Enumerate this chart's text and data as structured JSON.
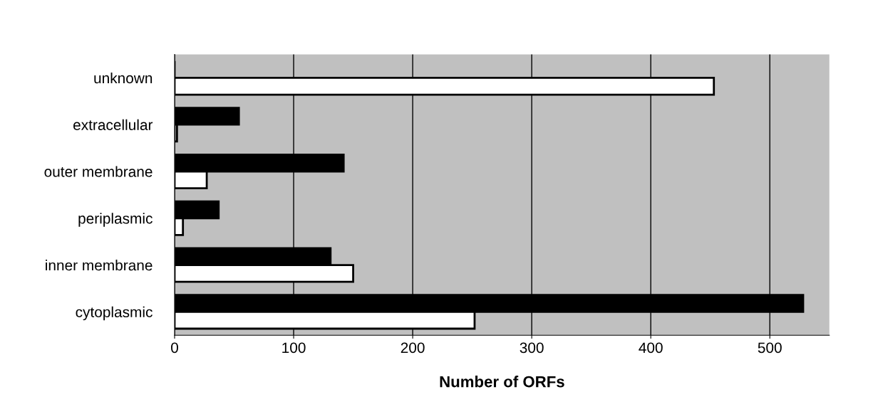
{
  "chart_data": {
    "type": "bar",
    "orientation": "horizontal",
    "xlabel": "Number of ORFs",
    "categories": [
      "unknown",
      "extracellular",
      "outer membrane",
      "periplasmic",
      "inner membrane",
      "cytoplasmic"
    ],
    "series": [
      {
        "color": "#000000",
        "values": [
          0,
          54,
          142,
          37,
          131,
          528
        ]
      },
      {
        "color": "#ffffff",
        "values": [
          453,
          2,
          27,
          7,
          150,
          252
        ]
      }
    ],
    "xlim": [
      0,
      550
    ],
    "xticks": [
      0,
      100,
      200,
      300,
      400,
      500
    ],
    "grid": "x"
  }
}
